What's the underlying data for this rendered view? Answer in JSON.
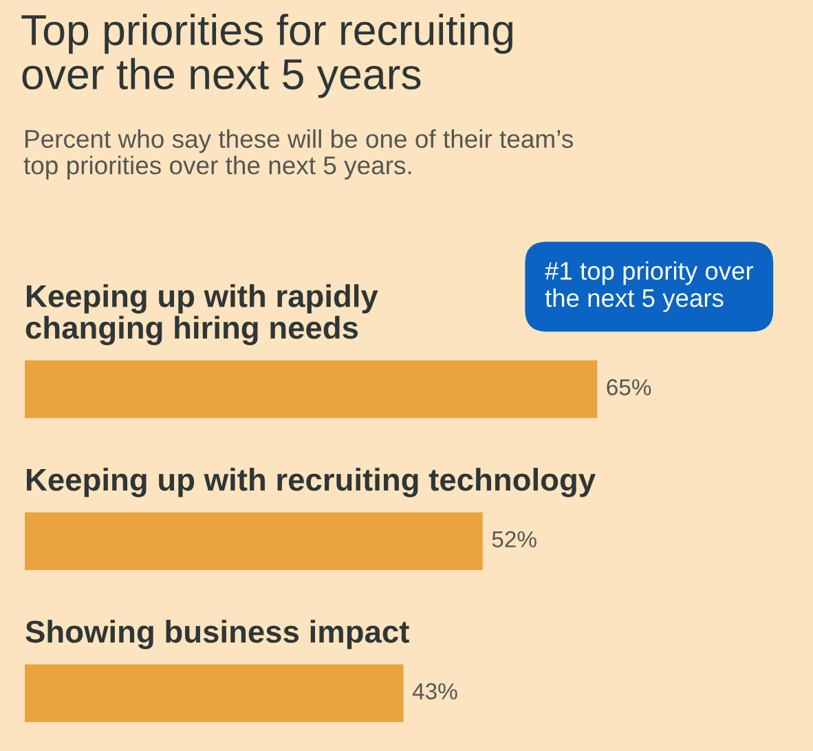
{
  "chart_data": {
    "type": "bar",
    "orientation": "horizontal",
    "title": "Top priorities for recruiting\nover the next 5 years",
    "subtitle": "Percent who say these will be one of their team’s\ntop priorities over the next 5 years.",
    "categories": [
      "Keeping up with rapidly\nchanging hiring needs",
      "Keeping up with recruiting technology",
      "Showing business impact"
    ],
    "values": [
      65,
      52,
      43
    ],
    "value_labels": [
      "65%",
      "52%",
      "43%"
    ],
    "color": "#e9a43f",
    "xlim": [
      0,
      89.5
    ],
    "tick_labels": false,
    "grid": false,
    "legend": false,
    "annotations": [
      "#1 top priority over\nthe next 5 years"
    ]
  }
}
